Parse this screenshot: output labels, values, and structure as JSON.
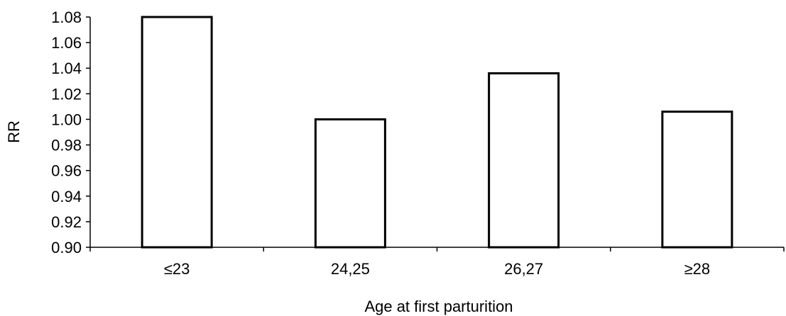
{
  "chart_data": {
    "type": "bar",
    "title": "",
    "xlabel": "Age at first parturition",
    "ylabel": "RR",
    "categories": [
      "≤23",
      "24,25",
      "26,27",
      "≥28"
    ],
    "values": [
      1.08,
      1.0,
      1.036,
      1.006
    ],
    "ylim": [
      0.9,
      1.08
    ],
    "yticks": [
      "0.90",
      "0.92",
      "0.94",
      "0.96",
      "0.98",
      "1.00",
      "1.02",
      "1.04",
      "1.06",
      "1.08"
    ],
    "grid": false,
    "legend": "none",
    "colors": {
      "bar_fill": "#ffffff",
      "bar_stroke": "#000000",
      "axis": "#000000"
    }
  }
}
